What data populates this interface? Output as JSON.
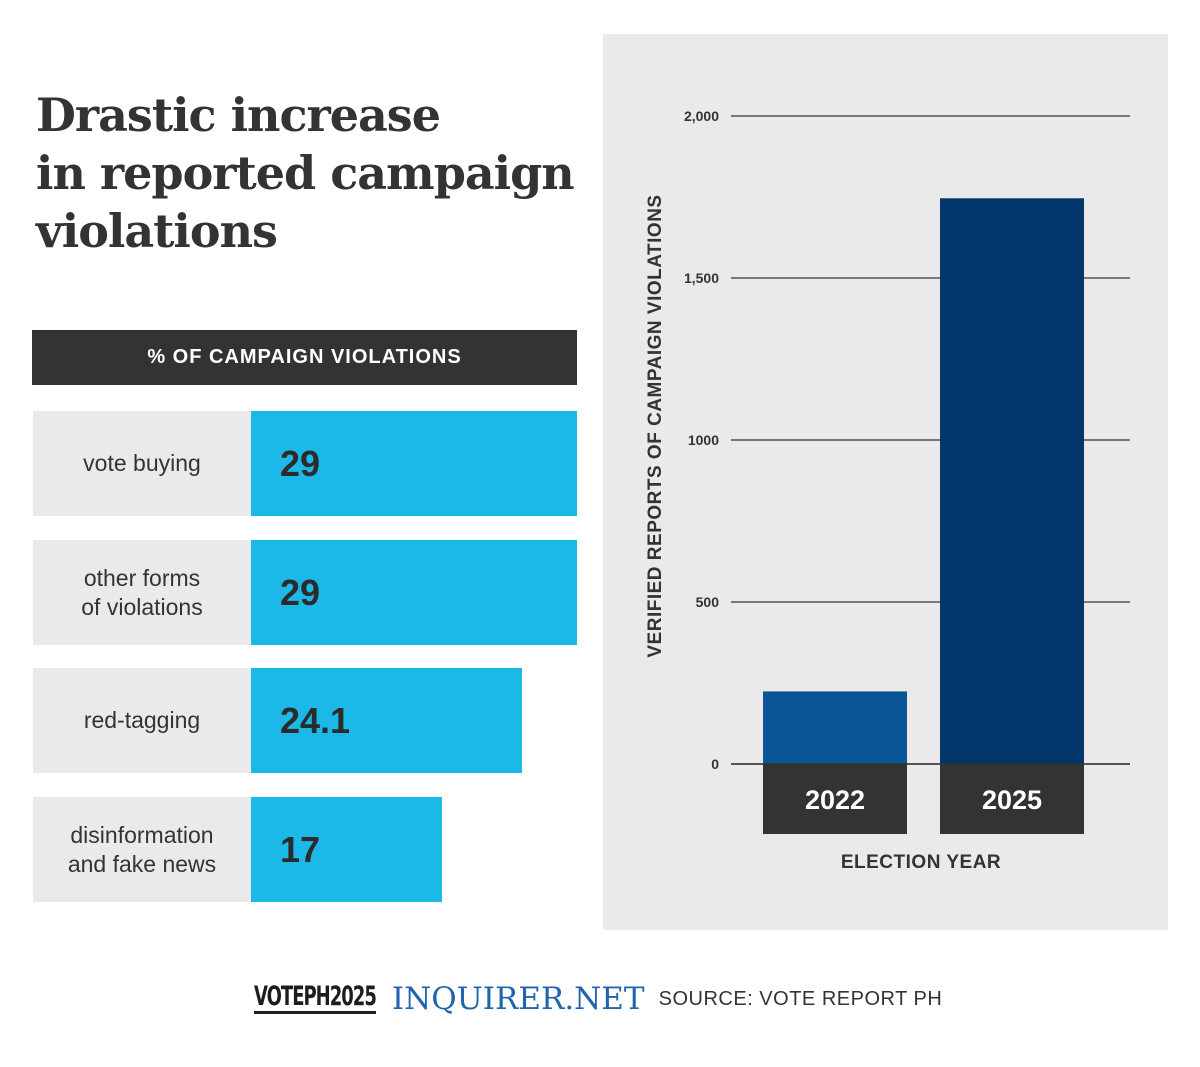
{
  "title_lines": [
    "Drastic increase",
    "in reported campaign",
    "violations"
  ],
  "pct_panel": {
    "header": "% OF CAMPAIGN VIOLATIONS",
    "max": 29,
    "bar_color": "#1cb9e8",
    "label_bg": "#ebeaea",
    "rows": [
      {
        "label": "vote buying",
        "value": 29,
        "display": "29"
      },
      {
        "label": "other forms\nof violations",
        "value": 29,
        "display": "29"
      },
      {
        "label": "red-tagging",
        "value": 24.1,
        "display": "24.1"
      },
      {
        "label": "disinformation\nand fake news",
        "value": 17,
        "display": "17"
      }
    ]
  },
  "chart_data": [
    {
      "type": "bar",
      "title": "% OF CAMPAIGN VIOLATIONS",
      "categories": [
        "vote buying",
        "other forms of violations",
        "red-tagging",
        "disinformation and fake news"
      ],
      "values": [
        29,
        29,
        24.1,
        17
      ],
      "orientation": "horizontal",
      "color": "#1cb9e8"
    },
    {
      "type": "bar",
      "categories": [
        "2022",
        "2025"
      ],
      "values": [
        224,
        1746
      ],
      "xlabel": "ELECTION YEAR",
      "ylabel": "VERIFIED REPORTS OF CAMPAIGN VIOLATIONS",
      "ylim": [
        0,
        2000
      ],
      "yticks": [
        0,
        500,
        1000,
        1500,
        2000
      ],
      "ytick_labels": [
        "0",
        "500",
        "1000",
        "1,500",
        "2,000"
      ],
      "grid": true,
      "colors": [
        "#0a5595",
        "#02366b"
      ],
      "category_label_bg": "#333333"
    }
  ],
  "footer": {
    "vote_logo": "VOTEPH2025",
    "brand": "INQUIRER.NET",
    "source": "SOURCE: VOTE REPORT PH"
  }
}
